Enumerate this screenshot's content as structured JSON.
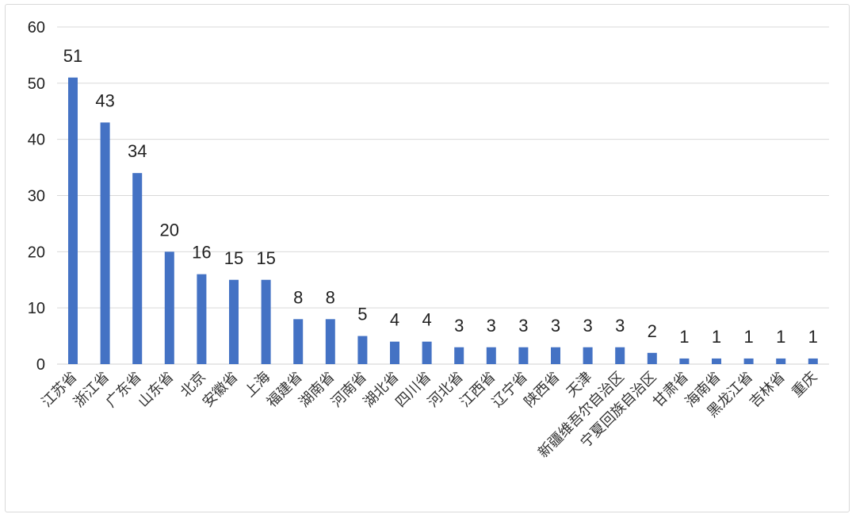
{
  "chart_data": {
    "type": "bar",
    "title": "",
    "xlabel": "",
    "ylabel": "",
    "ylim": [
      0,
      60
    ],
    "yticks": [
      0,
      10,
      20,
      30,
      40,
      50,
      60
    ],
    "grid": true,
    "legend": "none",
    "colors": {
      "bar": "#4472c4",
      "grid": "#d9d9d9"
    },
    "categories": [
      "江苏省",
      "浙江省",
      "广东省",
      "山东省",
      "北京",
      "安徽省",
      "上海",
      "福建省",
      "湖南省",
      "河南省",
      "湖北省",
      "四川省",
      "河北省",
      "江西省",
      "辽宁省",
      "陕西省",
      "天津",
      "新疆维吾尔自治区",
      "宁夏回族自治区",
      "甘肃省",
      "海南省",
      "黑龙江省",
      "吉林省",
      "重庆"
    ],
    "values": [
      51,
      43,
      34,
      20,
      16,
      15,
      15,
      8,
      8,
      5,
      4,
      4,
      3,
      3,
      3,
      3,
      3,
      3,
      2,
      1,
      1,
      1,
      1,
      1
    ]
  }
}
